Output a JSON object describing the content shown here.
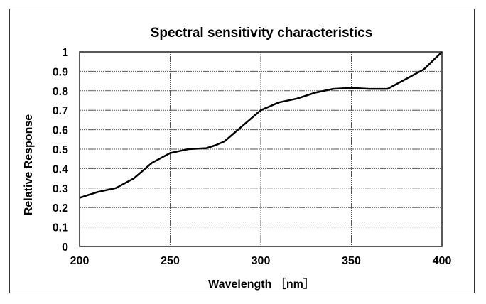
{
  "chart_data": {
    "type": "line",
    "title": "Spectral sensitivity characteristics",
    "xlabel": "Wavelength ［nm］",
    "ylabel": "Relative Response",
    "xlim": [
      200,
      400
    ],
    "ylim": [
      0,
      1
    ],
    "xticks": [
      200,
      250,
      300,
      350,
      400
    ],
    "yticks": [
      "0",
      "0.1",
      "0.2",
      "0.3",
      "0.4",
      "0.5",
      "0.6",
      "0.7",
      "0.8",
      "0.9",
      "1"
    ],
    "grid": true,
    "series": [
      {
        "name": "Relative Response",
        "color": "#000000",
        "x": [
          200,
          210,
          220,
          230,
          240,
          250,
          260,
          270,
          275,
          280,
          290,
          300,
          310,
          320,
          330,
          340,
          350,
          360,
          370,
          380,
          390,
          400
        ],
        "y": [
          0.25,
          0.28,
          0.3,
          0.35,
          0.43,
          0.48,
          0.5,
          0.505,
          0.52,
          0.54,
          0.62,
          0.7,
          0.74,
          0.76,
          0.79,
          0.81,
          0.815,
          0.81,
          0.81,
          0.86,
          0.91,
          1.0
        ]
      }
    ]
  }
}
